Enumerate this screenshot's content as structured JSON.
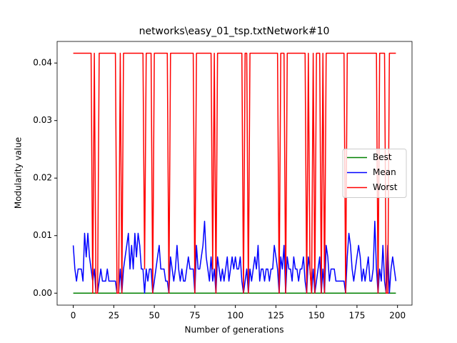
{
  "chart_data": {
    "type": "line",
    "title": "networks\\easy_01_tsp.txtNetwork#10",
    "xlabel": "Number of generations",
    "ylabel": "Modularity value",
    "x": [
      0,
      1,
      2,
      3,
      4,
      5,
      6,
      7,
      8,
      9,
      10,
      11,
      12,
      13,
      14,
      15,
      16,
      17,
      18,
      19,
      20,
      21,
      22,
      23,
      24,
      25,
      26,
      27,
      28,
      29,
      30,
      31,
      32,
      33,
      34,
      35,
      36,
      37,
      38,
      39,
      40,
      41,
      42,
      43,
      44,
      45,
      46,
      47,
      48,
      49,
      50,
      51,
      52,
      53,
      54,
      55,
      56,
      57,
      58,
      59,
      60,
      61,
      62,
      63,
      64,
      65,
      66,
      67,
      68,
      69,
      70,
      71,
      72,
      73,
      74,
      75,
      76,
      77,
      78,
      79,
      80,
      81,
      82,
      83,
      84,
      85,
      86,
      87,
      88,
      89,
      90,
      91,
      92,
      93,
      94,
      95,
      96,
      97,
      98,
      99,
      100,
      101,
      102,
      103,
      104,
      105,
      106,
      107,
      108,
      109,
      110,
      111,
      112,
      113,
      114,
      115,
      116,
      117,
      118,
      119,
      120,
      121,
      122,
      123,
      124,
      125,
      126,
      127,
      128,
      129,
      130,
      131,
      132,
      133,
      134,
      135,
      136,
      137,
      138,
      139,
      140,
      141,
      142,
      143,
      144,
      145,
      146,
      147,
      148,
      149,
      150,
      151,
      152,
      153,
      154,
      155,
      156,
      157,
      158,
      159,
      160,
      161,
      162,
      163,
      164,
      165,
      166,
      167,
      168,
      169,
      170,
      171,
      172,
      173,
      174,
      175,
      176,
      177,
      178,
      179,
      180,
      181,
      182,
      183,
      184,
      185,
      186,
      187,
      188,
      189,
      190,
      191,
      192,
      193,
      194,
      195,
      196,
      197,
      198,
      199
    ],
    "series": [
      {
        "name": "Best",
        "color": "#008000",
        "values": [
          0,
          0,
          0,
          0,
          0,
          0,
          0,
          0,
          0,
          0,
          0,
          0,
          0,
          0,
          0,
          0,
          0,
          0,
          0,
          0,
          0,
          0,
          0,
          0,
          0,
          0,
          0,
          0,
          0,
          0,
          0,
          0,
          0,
          0,
          0,
          0,
          0,
          0,
          0,
          0,
          0,
          0,
          0,
          0,
          0,
          0,
          0,
          0,
          0,
          0,
          0,
          0,
          0,
          0,
          0,
          0,
          0,
          0,
          0,
          0,
          0,
          0,
          0,
          0,
          0,
          0,
          0,
          0,
          0,
          0,
          0,
          0,
          0,
          0,
          0,
          0,
          0,
          0,
          0,
          0,
          0,
          0,
          0,
          0,
          0,
          0,
          0,
          0,
          0,
          0,
          0,
          0,
          0,
          0,
          0,
          0,
          0,
          0,
          0,
          0,
          0,
          0,
          0,
          0,
          0,
          0,
          0,
          0,
          0,
          0,
          0,
          0,
          0,
          0,
          0,
          0,
          0,
          0,
          0,
          0,
          0,
          0,
          0,
          0,
          0,
          0,
          0,
          0,
          0,
          0,
          0,
          0,
          0,
          0,
          0,
          0,
          0,
          0,
          0,
          0,
          0,
          0,
          0,
          0,
          0,
          0,
          0,
          0,
          0,
          0,
          0,
          0,
          0,
          0,
          0,
          0,
          0,
          0,
          0,
          0,
          0,
          0,
          0,
          0,
          0,
          0,
          0,
          0,
          0,
          0,
          0,
          0,
          0,
          0,
          0,
          0,
          0,
          0,
          0,
          0,
          0,
          0,
          0,
          0,
          0,
          0,
          0,
          0,
          0,
          0,
          0,
          0,
          0,
          0,
          0,
          0,
          0,
          0,
          0,
          0
        ]
      },
      {
        "name": "Mean",
        "color": "#0000ff",
        "values": [
          0.0083,
          0.0042,
          0.0021,
          0.0042,
          0.0042,
          0.0042,
          0.0021,
          0.0104,
          0.0063,
          0.0104,
          0.0063,
          0.0042,
          0.0021,
          0.0042,
          0,
          0,
          0.0021,
          0.0042,
          0.0021,
          0.0021,
          0.0021,
          0.0042,
          0.0021,
          0.0021,
          0.0021,
          0.0021,
          0.0021,
          0,
          0,
          0.0042,
          0,
          0.0042,
          0.0063,
          0.0083,
          0.0104,
          0.0042,
          0.0083,
          0.0042,
          0.0104,
          0.0063,
          0.0104,
          0.0083,
          0.0042,
          0.0042,
          0,
          0.0042,
          0.0021,
          0.0042,
          0.0042,
          0,
          0.0021,
          0.0042,
          0.0063,
          0.0083,
          0.0042,
          0.0042,
          0.0042,
          0.0021,
          0.0021,
          0,
          0.0063,
          0.0042,
          0.0021,
          0.0042,
          0.0083,
          0.0042,
          0.0021,
          0.0042,
          0.0021,
          0.0021,
          0.0042,
          0.0063,
          0.0042,
          0.0042,
          0.0042,
          0,
          0.0083,
          0.0042,
          0.0042,
          0.0063,
          0.0083,
          0.0125,
          0.0063,
          0.0042,
          0.0021,
          0.0063,
          0.0021,
          0.0042,
          0,
          0.0063,
          0.0042,
          0.0021,
          0.0042,
          0.0021,
          0.0042,
          0.0063,
          0.0021,
          0.0042,
          0.0063,
          0.0042,
          0.0063,
          0.0042,
          0.0042,
          0.0063,
          0.0021,
          0,
          0.0021,
          0.0042,
          0,
          0.0042,
          0.0021,
          0.0042,
          0.0063,
          0.0042,
          0.0083,
          0.0021,
          0.0042,
          0.0042,
          0.0021,
          0.0042,
          0.0042,
          0.0021,
          0.0042,
          0.0042,
          0.0083,
          0.0063,
          0.0042,
          0,
          0.0063,
          0.0042,
          0.0083,
          0,
          0.0063,
          0.0042,
          0.0042,
          0.0021,
          0.0063,
          0.0042,
          0.0042,
          0.0021,
          0.0042,
          0.0042,
          0.0063,
          0.0021,
          0,
          0.0063,
          0.0042,
          0,
          0.0042,
          0,
          0.0021,
          0.0042,
          0.0063,
          0,
          0.0042,
          0,
          0.0083,
          0.0063,
          0.0021,
          0.0042,
          0.0042,
          0.0042,
          0.0021,
          0.0021,
          0.0021,
          0.0021,
          0.0021,
          0.0021,
          0,
          0.0063,
          0.0104,
          0.0083,
          0.0042,
          0.0021,
          0.0042,
          0.0063,
          0.0083,
          0.0063,
          0.0021,
          0.0042,
          0.0021,
          0.0042,
          0.0063,
          0.0021,
          0.0021,
          0.0042,
          0.0125,
          0.0042,
          0,
          0.0042,
          0.0021,
          0.0083,
          0.0021,
          0,
          0.0083,
          0,
          0.0042,
          0.0063,
          0.0042,
          0.0021
        ]
      },
      {
        "name": "Worst",
        "color": "#ff0000",
        "values": [
          0.0417,
          0.0417,
          0.0417,
          0.0417,
          0.0417,
          0.0417,
          0.0417,
          0.0417,
          0.0417,
          0.0417,
          0.0417,
          0.0417,
          0,
          0.0417,
          0,
          0,
          0.0417,
          0.0417,
          0.0417,
          0.0417,
          0.0417,
          0.0417,
          0.0417,
          0.0417,
          0.0417,
          0.0417,
          0.0417,
          0,
          0,
          0.0417,
          0,
          0.0417,
          0.0417,
          0.0417,
          0.0417,
          0.0417,
          0.0417,
          0.0417,
          0.0417,
          0.0417,
          0.0417,
          0.0417,
          0.0417,
          0.0417,
          0.0042,
          0.0417,
          0.0417,
          0.0417,
          0.0417,
          0,
          0.0417,
          0.0417,
          0.0417,
          0.0417,
          0.0417,
          0.0417,
          0.0417,
          0.0417,
          0.0417,
          0,
          0.0417,
          0.0417,
          0.0417,
          0.0417,
          0.0417,
          0.0417,
          0.0417,
          0.0417,
          0.0417,
          0.0417,
          0.0417,
          0.0417,
          0.0417,
          0.0417,
          0.0417,
          0,
          0.0417,
          0.0417,
          0.0417,
          0.0417,
          0.0417,
          0.0417,
          0.0417,
          0.0417,
          0.0417,
          0.0417,
          0.0042,
          0.0417,
          0,
          0.0417,
          0.0417,
          0.0417,
          0.0417,
          0.0417,
          0.0417,
          0.0417,
          0.0417,
          0.0417,
          0.0417,
          0.0417,
          0.0417,
          0.0417,
          0.0417,
          0.0417,
          0.0417,
          0,
          0.0417,
          0.0417,
          0,
          0.0417,
          0.0417,
          0.0417,
          0.0417,
          0.0417,
          0.0417,
          0.0417,
          0.0417,
          0.0417,
          0.0417,
          0.0417,
          0.0417,
          0.0417,
          0.0417,
          0.0417,
          0.0417,
          0.0417,
          0.0417,
          0,
          0.0417,
          0.0417,
          0.0417,
          0,
          0.0417,
          0.0417,
          0.0417,
          0.0417,
          0.0417,
          0.0417,
          0.0417,
          0.0417,
          0.0417,
          0.0417,
          0.0417,
          0.0417,
          0,
          0.0417,
          0.0042,
          0,
          0.0417,
          0,
          0.0417,
          0.0417,
          0.0417,
          0,
          0.0417,
          0,
          0.0417,
          0.0417,
          0.0417,
          0.0417,
          0.0417,
          0.0417,
          0.0417,
          0.0417,
          0.0417,
          0.0417,
          0.0417,
          0.0417,
          0,
          0.0417,
          0.0417,
          0.0417,
          0.0417,
          0.0417,
          0.0417,
          0.0417,
          0.0417,
          0.0417,
          0.0417,
          0.0417,
          0.0417,
          0.0417,
          0.0417,
          0.0417,
          0.0417,
          0.0417,
          0.0417,
          0.0417,
          0,
          0.0417,
          0.0417,
          0.0417,
          0.0417,
          0,
          0,
          0.0417,
          0.0417,
          0.0417,
          0.0417,
          0.0417
        ]
      }
    ],
    "xlim": [
      -9.95,
      208.95
    ],
    "xticks": [
      0,
      25,
      50,
      75,
      100,
      125,
      150,
      175,
      200
    ],
    "ylim": [
      -0.00208,
      0.04375
    ],
    "yticks": [
      {
        "value": 0,
        "label": "0.00"
      },
      {
        "value": 0.01,
        "label": "0.01"
      },
      {
        "value": 0.02,
        "label": "0.02"
      },
      {
        "value": 0.03,
        "label": "0.03"
      },
      {
        "value": 0.04,
        "label": "0.04"
      }
    ],
    "legend": "center right",
    "grid": false
  }
}
